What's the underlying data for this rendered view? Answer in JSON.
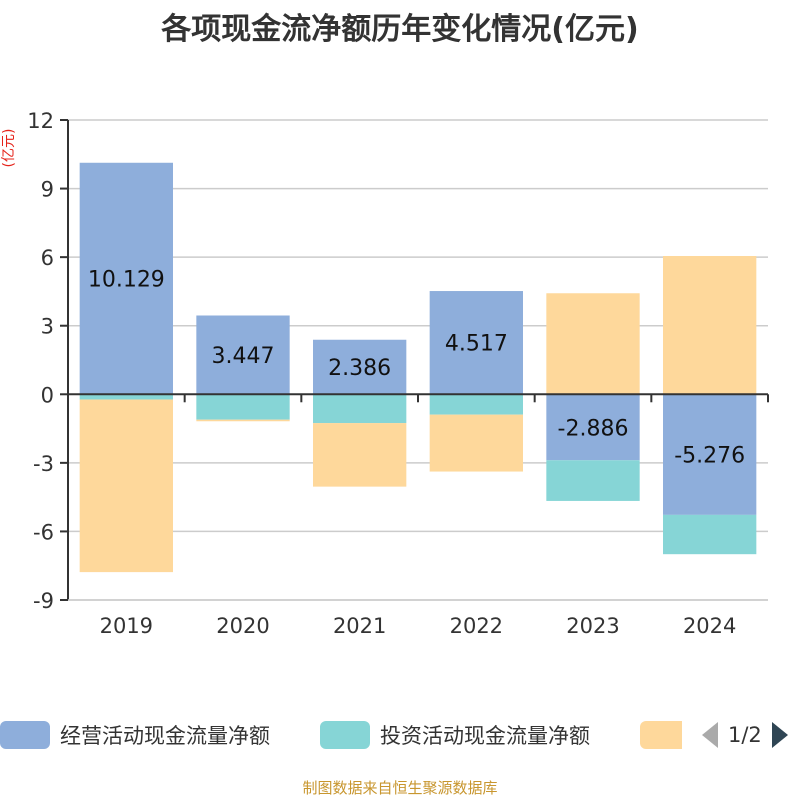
{
  "chart_data": {
    "type": "bar",
    "stacked": true,
    "title": "各项现金流净额历年变化情况(亿元)",
    "ylabel": "(亿元)",
    "xlabel": "",
    "ylim": [
      -9,
      12
    ],
    "yticks": [
      12,
      9,
      6,
      3,
      0,
      -3,
      -6,
      -9
    ],
    "grid": true,
    "categories": [
      "2019",
      "2020",
      "2021",
      "2022",
      "2023",
      "2024"
    ],
    "series": [
      {
        "name": "经营活动现金流量净额",
        "color": "#8eaedb",
        "values": [
          10.129,
          3.447,
          2.386,
          4.517,
          -2.886,
          -5.276
        ],
        "labels": [
          "10.129",
          "3.447",
          "2.386",
          "4.517",
          "-2.886",
          "-5.276"
        ]
      },
      {
        "name": "投资活动现金流量净额",
        "color": "#86d5d6",
        "values": [
          -0.23,
          -1.11,
          -1.26,
          -0.89,
          -1.78,
          -1.72
        ]
      },
      {
        "name": "",
        "color": "#fed89b",
        "values": [
          -7.55,
          -0.07,
          -2.78,
          -2.49,
          4.42,
          6.05
        ]
      }
    ],
    "legend_position": "bottom"
  },
  "legend": {
    "items": [
      {
        "label": "经营活动现金流量净额",
        "color": "#8eaedb"
      },
      {
        "label": "投资活动现金流量净额",
        "color": "#86d5d6"
      },
      {
        "color": "#fed89b"
      }
    ],
    "page": "1/2",
    "prev_icon": "triangle-left-icon",
    "next_icon": "triangle-right-icon",
    "prev_color": "#aaaaaa",
    "next_color": "#2f4554"
  },
  "footer": "制图数据来自恒生聚源数据库"
}
